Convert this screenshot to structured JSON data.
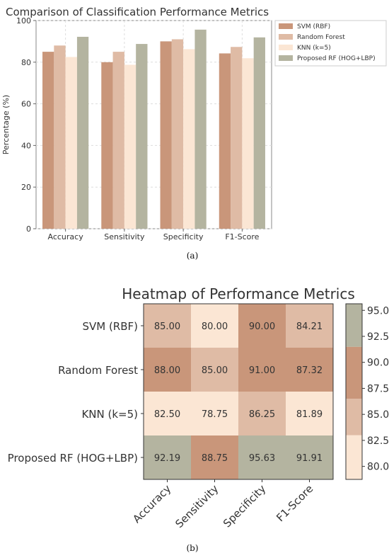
{
  "chart_data": [
    {
      "type": "bar",
      "title": "Comparison of Classification Performance Metrics",
      "ylabel": "Percentage (%)",
      "xlabel": "",
      "ylim": [
        0,
        100
      ],
      "yticks": [
        0,
        20,
        40,
        60,
        80,
        100
      ],
      "grid": true,
      "legend_position": "top-right",
      "caption": "(a)",
      "categories": [
        "Accuracy",
        "Sensitivity",
        "Specificity",
        "F1-Score"
      ],
      "series": [
        {
          "name": "SVM (RBF)",
          "color": "#c9967a",
          "values": [
            85.0,
            80.0,
            90.0,
            84.21
          ]
        },
        {
          "name": "Random Forest",
          "color": "#dfbba5",
          "values": [
            88.0,
            85.0,
            91.0,
            87.32
          ]
        },
        {
          "name": "KNN (k=5)",
          "color": "#fbe6d4",
          "values": [
            82.5,
            78.75,
            86.25,
            81.89
          ]
        },
        {
          "name": "Proposed RF (HOG+LBP)",
          "color": "#b4b4a0",
          "values": [
            92.19,
            88.75,
            95.63,
            91.91
          ]
        }
      ]
    },
    {
      "type": "heatmap",
      "title": "Heatmap of Performance Metrics",
      "caption": "(b)",
      "rows": [
        "SVM (RBF)",
        "Random Forest",
        "KNN (k=5)",
        "Proposed RF (HOG+LBP)"
      ],
      "columns": [
        "Accuracy",
        "Sensitivity",
        "Specificity",
        "F1-Score"
      ],
      "values": [
        [
          85.0,
          80.0,
          90.0,
          84.21
        ],
        [
          88.0,
          85.0,
          91.0,
          87.32
        ],
        [
          82.5,
          78.75,
          86.25,
          81.89
        ],
        [
          92.19,
          88.75,
          95.63,
          91.91
        ]
      ],
      "value_format": "2 decimals",
      "colorbar": {
        "ticks": [
          80.0,
          82.5,
          85.0,
          87.5,
          90.0,
          92.5,
          95.0
        ],
        "tick_labels": [
          "80.0",
          "82.5",
          "85.0",
          "87.5",
          "90.0",
          "92.5",
          "95.0"
        ],
        "range": [
          78.75,
          95.63
        ],
        "bands": [
          {
            "from": 78.75,
            "to": 83.0,
            "color": "#fbe6d4"
          },
          {
            "from": 83.0,
            "to": 86.5,
            "color": "#dfbba5"
          },
          {
            "from": 86.5,
            "to": 91.5,
            "color": "#c9967a"
          },
          {
            "from": 91.5,
            "to": 95.63,
            "color": "#b4b4a0"
          }
        ]
      }
    }
  ]
}
